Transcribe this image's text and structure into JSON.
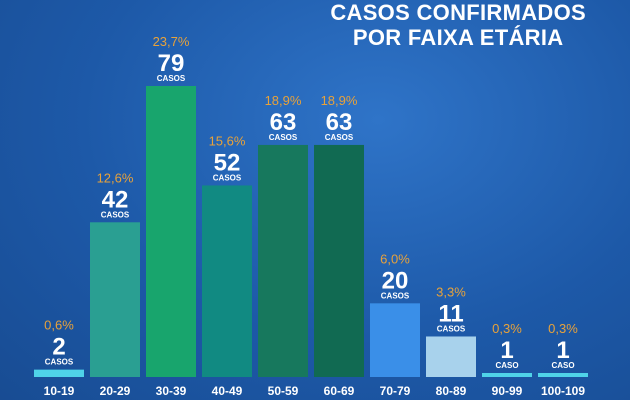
{
  "title_line1": "CASOS CONFIRMADOS",
  "title_line2": "POR FAIXA ETÁRIA",
  "chart_data": {
    "type": "bar",
    "title": "CASOS CONFIRMADOS POR FAIXA ETÁRIA",
    "categories": [
      "10-19",
      "20-29",
      "30-39",
      "40-49",
      "50-59",
      "60-69",
      "70-79",
      "80-89",
      "90-99",
      "100-109"
    ],
    "values": [
      2,
      42,
      79,
      52,
      63,
      63,
      20,
      11,
      1,
      1
    ],
    "percent_labels": [
      "0,6%",
      "12,6%",
      "23,7%",
      "15,6%",
      "18,9%",
      "18,9%",
      "6,0%",
      "3,3%",
      "0,3%",
      "0,3%"
    ],
    "unit_labels": [
      "CASOS",
      "CASOS",
      "CASOS",
      "CASOS",
      "CASOS",
      "CASOS",
      "CASOS",
      "CASOS",
      "CASO",
      "CASO"
    ],
    "colors": [
      "#4fd3e8",
      "#2a9f92",
      "#18a56d",
      "#118a82",
      "#17785d",
      "#116a52",
      "#3a8fe8",
      "#a8d2ec",
      "#4fd3e8",
      "#4fd3e8"
    ],
    "ylim": [
      0,
      79
    ],
    "grid": false,
    "legend": "none"
  }
}
